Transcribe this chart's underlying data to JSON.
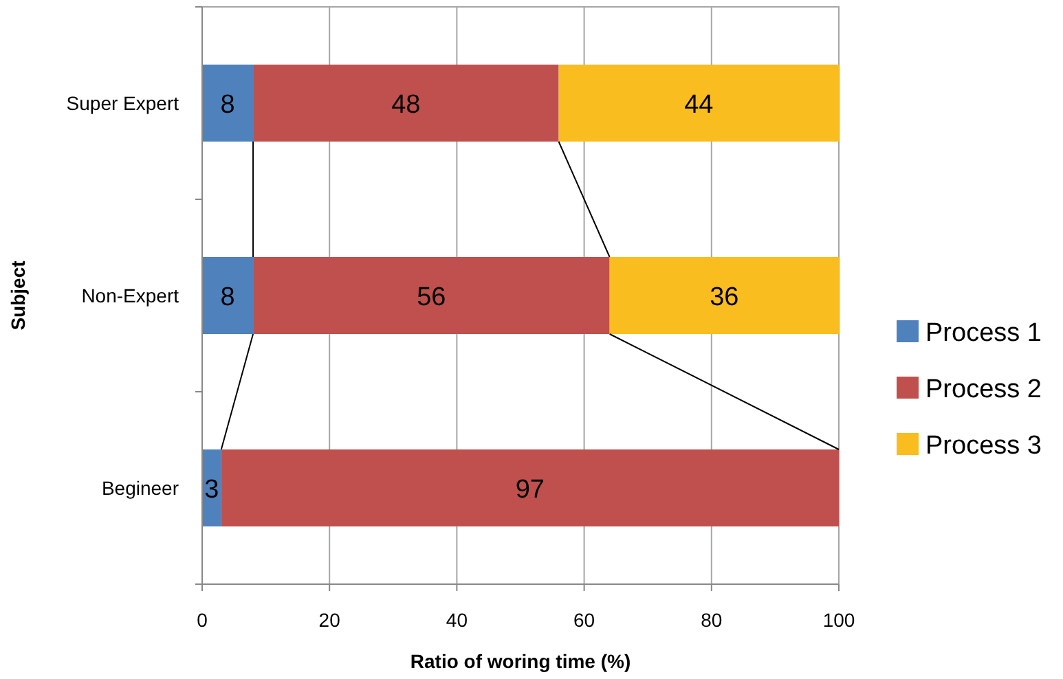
{
  "chart_data": {
    "type": "bar",
    "orientation": "horizontal",
    "stacked": true,
    "xlabel": "Ratio of woring time (%)",
    "ylabel": "Subject",
    "categories": [
      "Super Expert",
      "Non-Expert",
      "Begineer"
    ],
    "series": [
      {
        "name": "Process 1",
        "color": "#4f81bd",
        "values": [
          8,
          8,
          3
        ]
      },
      {
        "name": "Process 2",
        "color": "#c0504d",
        "values": [
          48,
          56,
          97
        ]
      },
      {
        "name": "Process 3",
        "color": "#f9bd1f",
        "values": [
          44,
          36,
          null
        ]
      }
    ],
    "xlim": [
      0,
      100
    ],
    "xticks": [
      0,
      20,
      40,
      60,
      80,
      100
    ],
    "grid": "x",
    "legend": "right",
    "data_labels": true
  }
}
